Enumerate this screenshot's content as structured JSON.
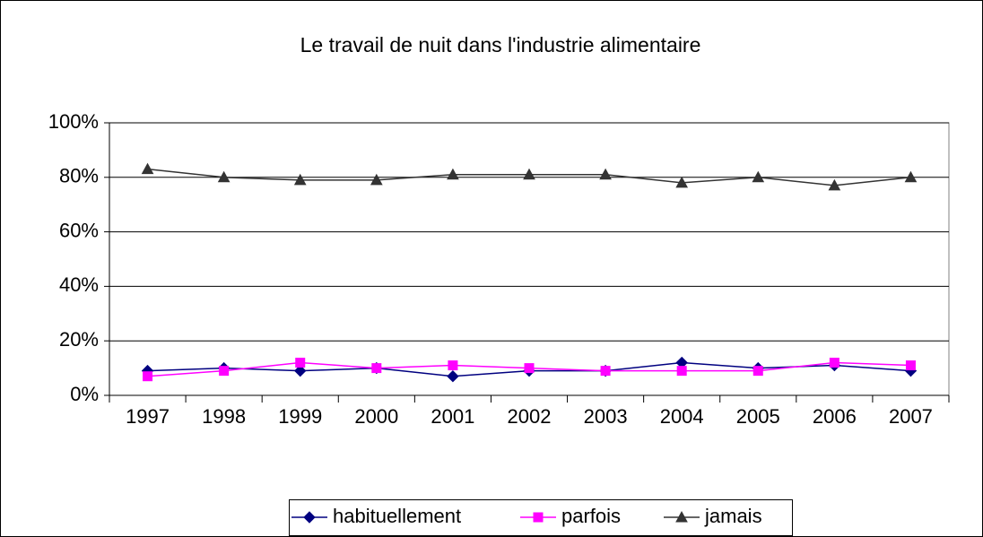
{
  "chart_data": {
    "type": "line",
    "title": "Le travail de nuit dans l'industrie alimentaire",
    "categories": [
      "1997",
      "1998",
      "1999",
      "2000",
      "2001",
      "2002",
      "2003",
      "2004",
      "2005",
      "2006",
      "2007"
    ],
    "series": [
      {
        "name": "habituellement",
        "color": "#000080",
        "marker": "diamond",
        "values": [
          9,
          10,
          9,
          10,
          7,
          9,
          9,
          12,
          10,
          11,
          9
        ]
      },
      {
        "name": "parfois",
        "color": "#ff00ff",
        "marker": "square",
        "values": [
          7,
          9,
          12,
          10,
          11,
          10,
          9,
          9,
          9,
          12,
          11
        ]
      },
      {
        "name": "jamais",
        "color": "#333333",
        "marker": "triangle",
        "values": [
          83,
          80,
          79,
          79,
          81,
          81,
          81,
          78,
          80,
          77,
          80
        ]
      }
    ],
    "ylim": [
      0,
      100
    ],
    "yticks": [
      {
        "value": 0,
        "label": "0%"
      },
      {
        "value": 20,
        "label": "20%"
      },
      {
        "value": 40,
        "label": "40%"
      },
      {
        "value": 60,
        "label": "60%"
      },
      {
        "value": 80,
        "label": "80%"
      },
      {
        "value": 100,
        "label": "100%"
      }
    ],
    "grid": true,
    "legend": "bottom"
  }
}
